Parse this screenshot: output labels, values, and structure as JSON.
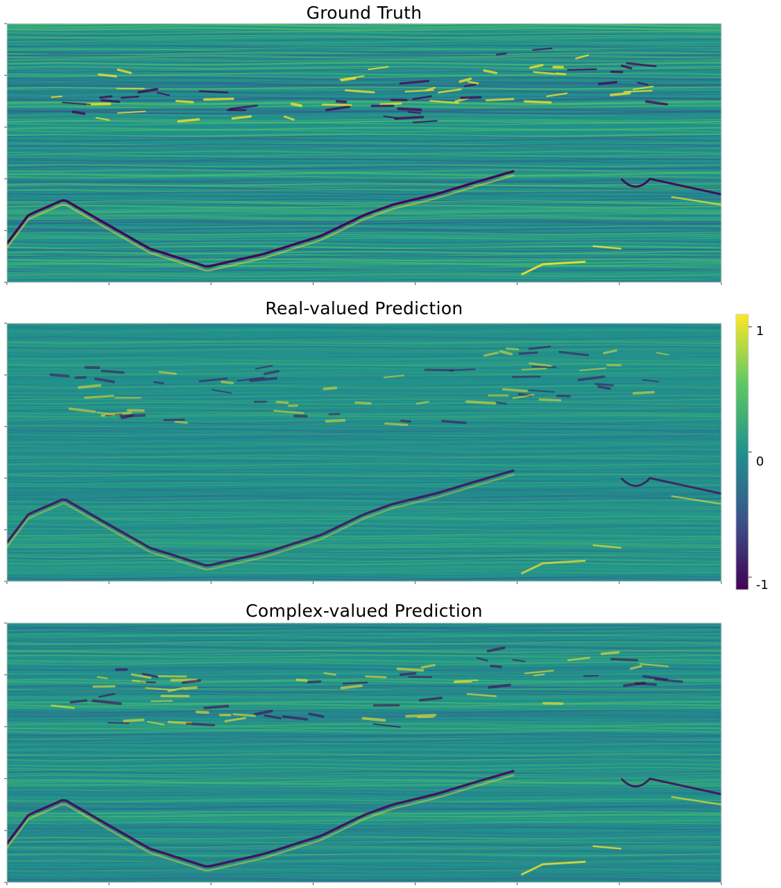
{
  "chart_data": [
    {
      "type": "heatmap",
      "title": "Ground Truth",
      "xlabel": "",
      "ylabel": "",
      "colormap": "viridis",
      "value_range": [
        -1.1,
        1.1
      ]
    },
    {
      "type": "heatmap",
      "title": "Real-valued Prediction",
      "xlabel": "",
      "ylabel": "",
      "colormap": "viridis",
      "value_range": [
        -1.1,
        1.1
      ]
    },
    {
      "type": "heatmap",
      "title": "Complex-valued Prediction",
      "xlabel": "",
      "ylabel": "",
      "colormap": "viridis",
      "value_range": [
        -1.1,
        1.1
      ]
    }
  ],
  "colorbar": {
    "ticks": [
      1,
      0,
      -1
    ],
    "tick_labels": [
      "1",
      "0",
      "-1"
    ],
    "colors": [
      "#440154",
      "#3b528b",
      "#21918c",
      "#5ec962",
      "#fde725"
    ]
  }
}
